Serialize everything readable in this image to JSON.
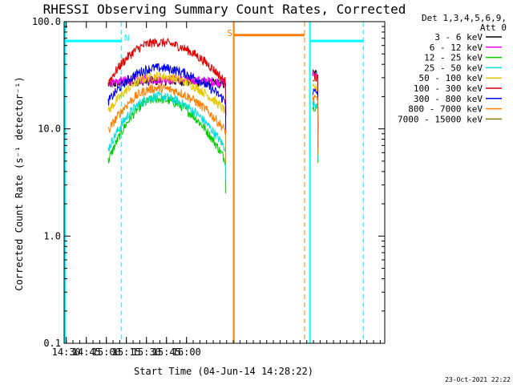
{
  "chart_data": {
    "type": "line",
    "title": "RHESSI Observing Summary Count Rates, Corrected",
    "xlabel": "Start Time (04-Jun-14 14:28:22)",
    "ylabel": "Corrected Count Rate (s⁻¹ detector⁻¹)",
    "yscale": "log",
    "ylim": [
      0.1,
      100.0
    ],
    "xlim_minutes": [
      0,
      240
    ],
    "x_units": "minutes after 14:28:22",
    "x_ticks": [
      "14:30",
      "14:45",
      "15:00",
      "15:15",
      "15:30",
      "15:45",
      "16:00"
    ],
    "y_ticks": [
      "0.1",
      "1.0",
      "10.0",
      "100.0"
    ],
    "legend_header": [
      "Det 1,3,4,5,6,9,",
      "Att 0"
    ],
    "legend_position": "right",
    "timestamp": "23-Oct-2021 22:22",
    "series": [
      {
        "name": "3 - 6 keV",
        "color": "#000000",
        "peak": 28.0,
        "edge": 26.0,
        "post": 33.0
      },
      {
        "name": "6 - 12 keV",
        "color": "#ff00ff",
        "peak": 29.0,
        "edge": 27.0,
        "post": 32.0
      },
      {
        "name": "12 - 25 keV",
        "color": "#00cc00",
        "peak": 19.0,
        "edge": 5.0,
        "post": 16.0
      },
      {
        "name": "25 - 50 keV",
        "color": "#00dddd",
        "peak": 20.0,
        "edge": 6.5,
        "post": 17.0
      },
      {
        "name": "50 - 100 keV",
        "color": "#e6c800",
        "peak": 31.0,
        "edge": 14.5,
        "post": 24.0
      },
      {
        "name": "100 - 300 keV",
        "color": "#dd0000",
        "peak": 64.0,
        "edge": 27.0,
        "post": 30.0
      },
      {
        "name": "300 - 800 keV",
        "color": "#0000ee",
        "peak": 37.0,
        "edge": 18.0,
        "post": 22.0
      },
      {
        "name": "800 - 7000 keV",
        "color": "#ff7f00",
        "peak": 24.0,
        "edge": 9.5,
        "post": 19.0
      },
      {
        "name": "7000 - 15000 keV",
        "color": "#808000",
        "peak": null,
        "edge": null,
        "post": null
      }
    ],
    "annotations": [
      {
        "label": "N",
        "color": "#00ffff"
      },
      {
        "label": "S",
        "color": "#ff7f00"
      }
    ]
  }
}
